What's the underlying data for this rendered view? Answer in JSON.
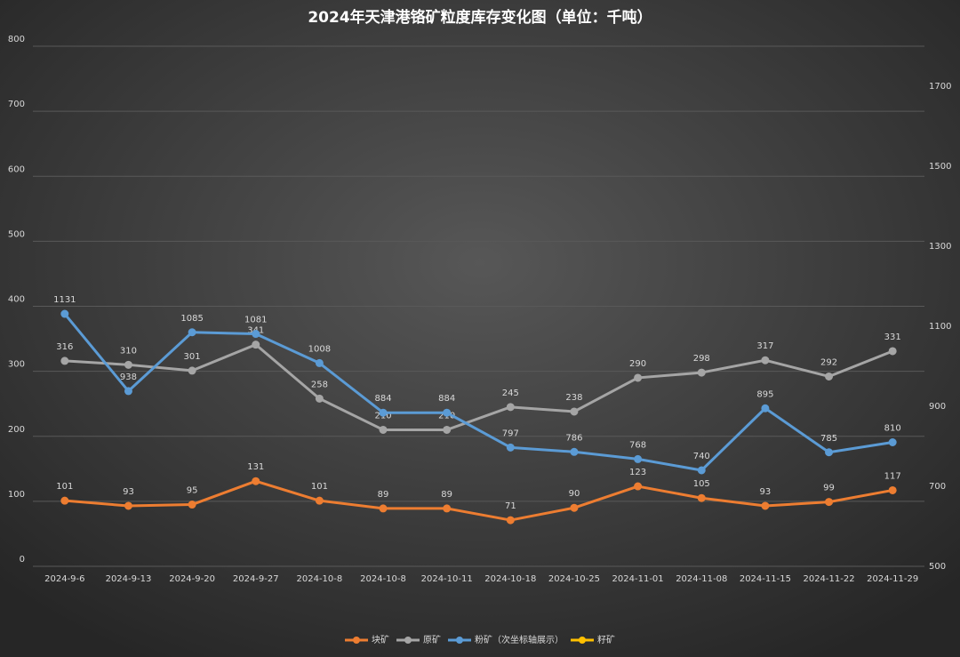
{
  "chart_data": {
    "type": "line",
    "title": "2024年天津港铬矿粒度库存变化图（单位：千吨）",
    "categories": [
      "2024-9-6",
      "2024-9-13",
      "2024-9-20",
      "2024-9-27",
      "2024-10-8",
      "2024-10-8",
      "2024-10-11",
      "2024-10-18",
      "2024-10-25",
      "2024-11-01",
      "2024-11-08",
      "2024-11-15",
      "2024-11-22",
      "2024-11-29"
    ],
    "series": [
      {
        "name": "块矿",
        "color": "#ed7d31",
        "values": [
          101,
          93,
          95,
          131,
          101,
          89,
          89,
          71,
          90,
          123,
          105,
          93,
          99,
          117
        ]
      },
      {
        "name": "原矿",
        "color": "#a5a5a5",
        "values": [
          316,
          310,
          301,
          341,
          258,
          210,
          210,
          245,
          238,
          290,
          298,
          317,
          292,
          331
        ]
      },
      {
        "name": "粉矿（次坐标轴展示）",
        "color": "#5b9bd5",
        "axis": "y2",
        "values": [
          1131,
          938,
          1085,
          1081,
          1008,
          884,
          884,
          797,
          786,
          768,
          740,
          895,
          785,
          810
        ]
      },
      {
        "name": "籽矿",
        "color": "#ffc000",
        "values": [
          null,
          null,
          null,
          null,
          null,
          null,
          null,
          null,
          null,
          null,
          null,
          null,
          null,
          null
        ]
      }
    ],
    "ylim": [
      0,
      800
    ],
    "yticks": [
      0,
      100,
      200,
      300,
      400,
      500,
      600,
      700,
      800
    ],
    "y2lim": [
      500,
      1800
    ],
    "y2ticks": [
      500,
      700,
      900,
      1100,
      1300,
      1500,
      1700
    ],
    "grid": true,
    "legend": "bottom"
  }
}
